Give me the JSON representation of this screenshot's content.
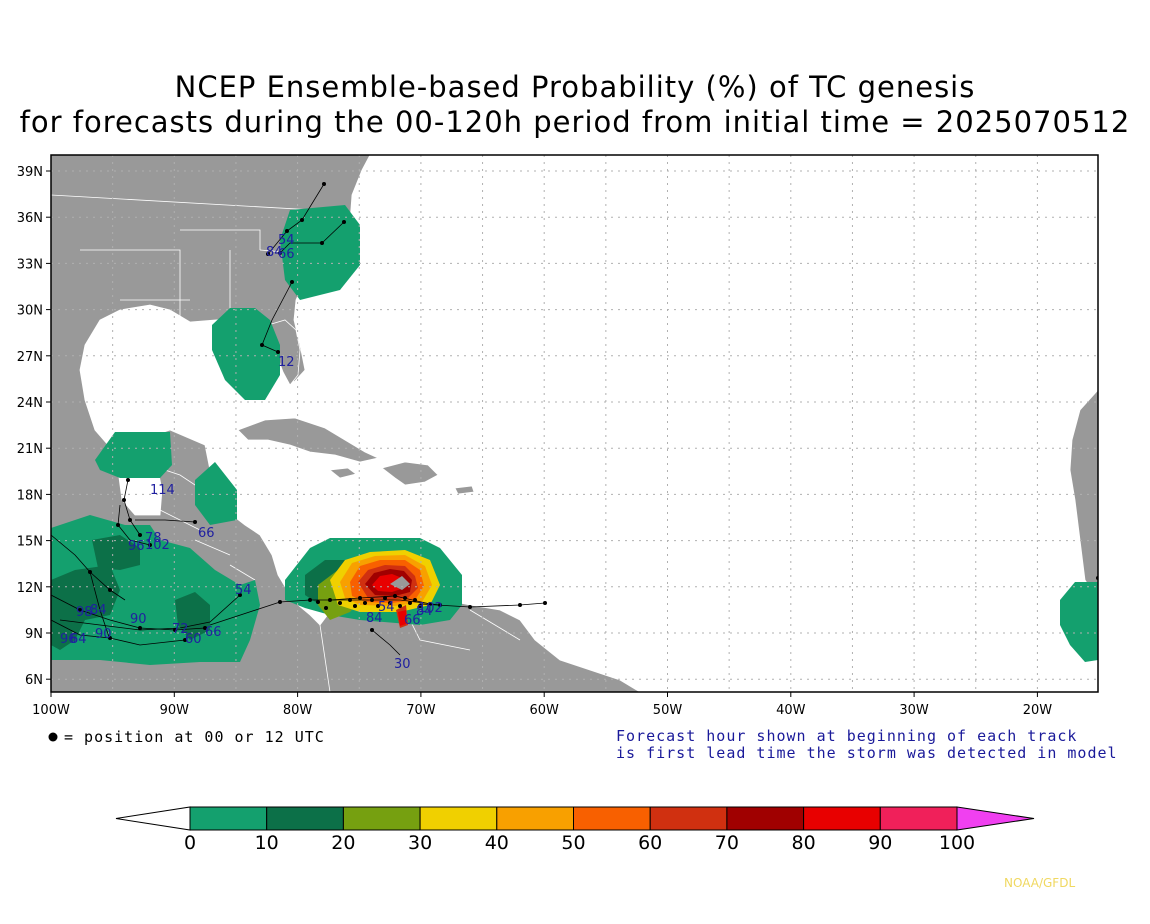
{
  "title_line1": "NCEP Ensemble-based Probability (%) of TC genesis",
  "title_line2": "for forecasts during the 00-120h period from initial time = 2025070512",
  "lat_labels": [
    "39N",
    "36N",
    "33N",
    "30N",
    "27N",
    "24N",
    "21N",
    "18N",
    "15N",
    "12N",
    "9N",
    "6N"
  ],
  "lon_labels": [
    "100W",
    "90W",
    "80W",
    "70W",
    "60W",
    "50W",
    "40W",
    "30W",
    "20W"
  ],
  "note_left": "= position at 00 or 12 UTC",
  "note_right_1": "Forecast hour shown at beginning of each track",
  "note_right_2": "is first lead time the storm was detected in model",
  "colorbar": {
    "labels": [
      "0",
      "10",
      "20",
      "30",
      "40",
      "50",
      "60",
      "70",
      "80",
      "90",
      "100"
    ],
    "colors": [
      "#14a06e",
      "#0c7048",
      "#76a010",
      "#f0d000",
      "#f8a000",
      "#f86000",
      "#d03010",
      "#a00000",
      "#e80000",
      "#f0205a"
    ],
    "over_color": "#f040f0",
    "under_color": "#ffffff"
  },
  "forecast_hours": [
    "54",
    "84",
    "66",
    "12",
    "114",
    "78",
    "96",
    "102",
    "66",
    "54",
    "90",
    "98",
    "84",
    "96",
    "90",
    "72",
    "66",
    "60",
    "84",
    "30",
    "66",
    "54",
    "84",
    "102",
    "64"
  ],
  "credit": "NOAA/GFDL",
  "colors": {
    "land": "#999999",
    "ocean": "#ffffff",
    "grid": "#b0b0b0",
    "track_label": "#2020a0"
  }
}
